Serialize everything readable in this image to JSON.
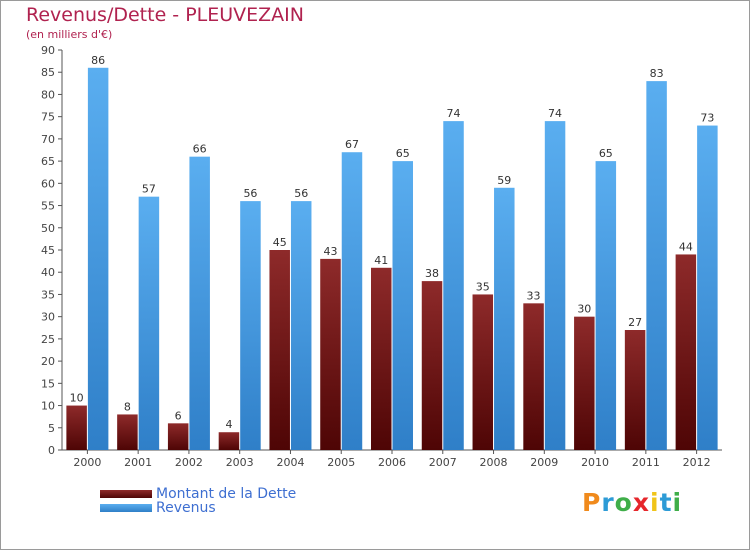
{
  "header": {
    "title": "Revenus/Dette - PLEUVEZAIN",
    "subtitle": "(en milliers d'€)"
  },
  "chart_data": {
    "type": "bar",
    "categories": [
      "2000",
      "2001",
      "2002",
      "2003",
      "2004",
      "2005",
      "2006",
      "2007",
      "2008",
      "2009",
      "2010",
      "2011",
      "2012"
    ],
    "series": [
      {
        "name": "Montant de la Dette",
        "values": [
          10,
          8,
          6,
          4,
          45,
          43,
          41,
          38,
          35,
          33,
          30,
          27,
          44
        ],
        "color": "#7a1616"
      },
      {
        "name": "Revenus",
        "values": [
          86,
          57,
          66,
          56,
          56,
          67,
          65,
          74,
          59,
          74,
          65,
          83,
          73
        ],
        "color": "#4d9fe3"
      }
    ],
    "title": "Revenus/Dette - PLEUVEZAIN",
    "ylabel": "(en milliers d'€)",
    "ylim": [
      0,
      90
    ],
    "yticks": [
      0,
      5,
      10,
      15,
      20,
      25,
      30,
      35,
      40,
      45,
      50,
      55,
      60,
      65,
      70,
      75,
      80,
      85,
      90
    ],
    "grid": false,
    "legend": "bottom-left"
  },
  "legend": {
    "debt_label": "Montant de la Dette",
    "revenue_label": "Revenus"
  },
  "logo": {
    "text": "Proxiti",
    "colors": [
      "#f08a1c",
      "#2d9bd6",
      "#3fae49",
      "#e6262b",
      "#f0c419",
      "#2d9bd6",
      "#3fae49"
    ]
  }
}
